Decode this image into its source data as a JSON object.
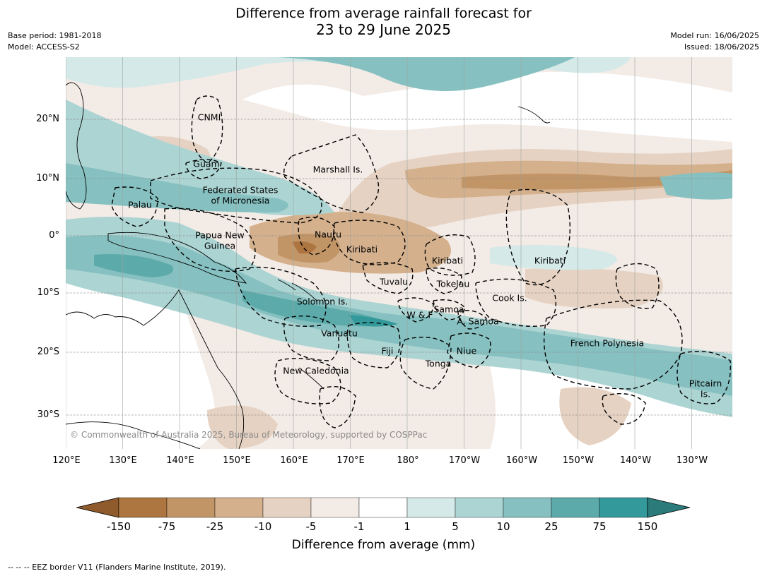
{
  "title": {
    "line1": "Difference from average rainfall forecast for",
    "line2": "23 to 29 June 2025"
  },
  "meta": {
    "base_period": "Base period: 1981-2018",
    "model": "Model: ACCESS-S2",
    "model_run": "Model run: 16/06/2025",
    "issued": "Issued: 18/06/2025"
  },
  "axes": {
    "lat_labels": [
      "20°N",
      "10°N",
      "0°",
      "10°S",
      "20°S",
      "30°S"
    ],
    "lon_labels": [
      "120°E",
      "130°E",
      "140°E",
      "150°E",
      "160°E",
      "170°E",
      "180°",
      "170°W",
      "160°W",
      "150°W",
      "140°W",
      "130°W"
    ]
  },
  "regions": [
    {
      "name": "CNMI"
    },
    {
      "name": "Guam"
    },
    {
      "name": "Marshall Is."
    },
    {
      "name": "Federated States"
    },
    {
      "name": "of Micronesia"
    },
    {
      "name": "Palau"
    },
    {
      "name": "Papua New"
    },
    {
      "name": "Guinea"
    },
    {
      "name": "Nauru"
    },
    {
      "name": "Kiribati"
    },
    {
      "name": "Kiribati"
    },
    {
      "name": "Kiribati"
    },
    {
      "name": "Tuvalu"
    },
    {
      "name": "Tokelau"
    },
    {
      "name": "Cook Is."
    },
    {
      "name": "Solomon Is."
    },
    {
      "name": "W & F"
    },
    {
      "name": "Samoa"
    },
    {
      "name": "A. Samoa"
    },
    {
      "name": "Vanuatu"
    },
    {
      "name": "Fiji"
    },
    {
      "name": "Niue"
    },
    {
      "name": "Tonga"
    },
    {
      "name": "French Polynesia"
    },
    {
      "name": "New Caledonia"
    },
    {
      "name": "Pitcairn"
    },
    {
      "name": "Is."
    }
  ],
  "credit": "© Commonwealth of Australia 2025, Bureau of Meteorology, supported by COSPPac",
  "colorbar": {
    "title": "Difference from average (mm)",
    "labels": [
      "-150",
      "-75",
      "-25",
      "-10",
      "-5",
      "-1",
      "1",
      "5",
      "10",
      "25",
      "75",
      "150"
    ],
    "colors": [
      "#8f5a2c",
      "#ad7540",
      "#c29566",
      "#d4b08d",
      "#e6d2c2",
      "#f3ebe6",
      "#ffffff",
      "#d4e9e8",
      "#acd4d3",
      "#86c0c0",
      "#5caaaa",
      "#33999a",
      "#2a7b7a"
    ]
  },
  "footer": "--  --  -- EEZ border V11 (Flanders Marine Institute, 2019)."
}
